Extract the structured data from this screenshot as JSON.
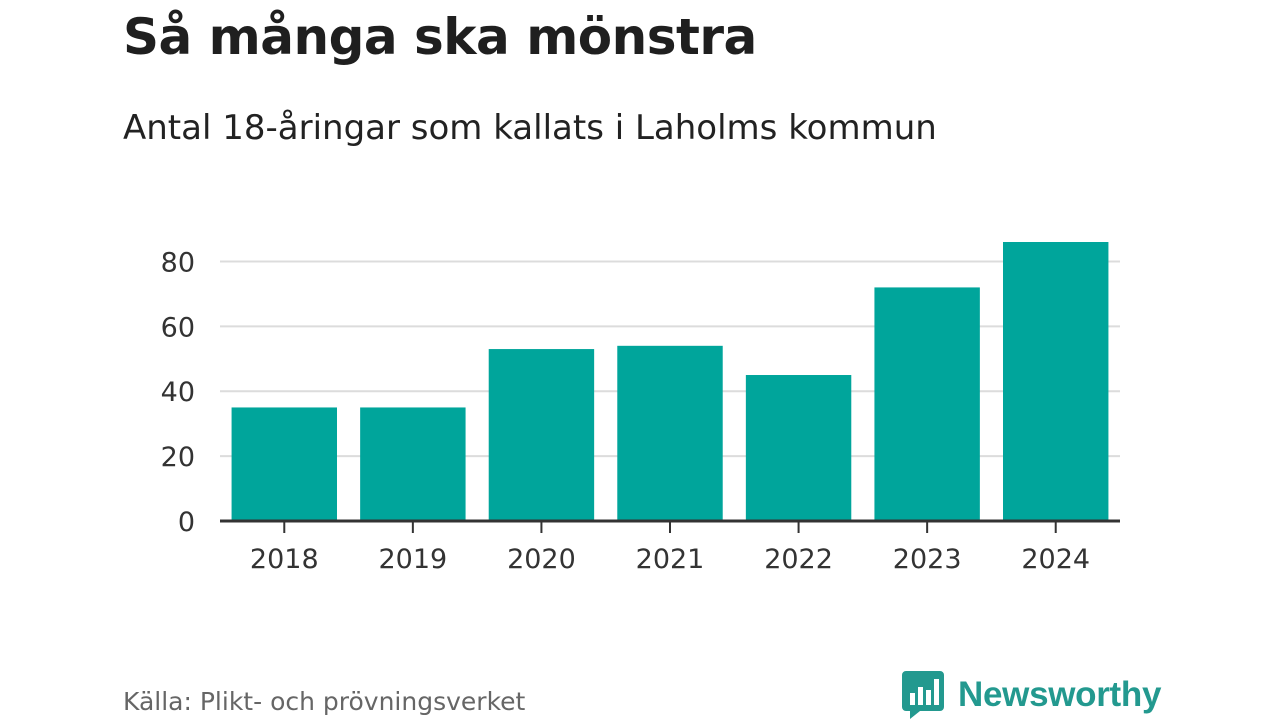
{
  "chart_data": {
    "type": "bar",
    "title": "Så många ska mönstra",
    "subtitle": "Antal 18-åringar som kallats i Laholms kommun",
    "categories": [
      "2018",
      "2019",
      "2020",
      "2021",
      "2022",
      "2023",
      "2024"
    ],
    "values": [
      35,
      35,
      53,
      54,
      45,
      72,
      86
    ],
    "xlabel": "",
    "ylabel": "",
    "ylim": [
      0,
      86
    ],
    "yticks": [
      0,
      20,
      40,
      60,
      80
    ],
    "grid": true,
    "legend": "none",
    "source": "Källa: Plikt- och prövningsverket"
  },
  "brand": {
    "name": "Newsworthy",
    "logo_icon": "speech-bubble-bar-chart-icon"
  },
  "colors": {
    "bar": "#00a59b",
    "grid": "#dcdcdc",
    "axis": "#333333",
    "brand": "#23998f"
  }
}
